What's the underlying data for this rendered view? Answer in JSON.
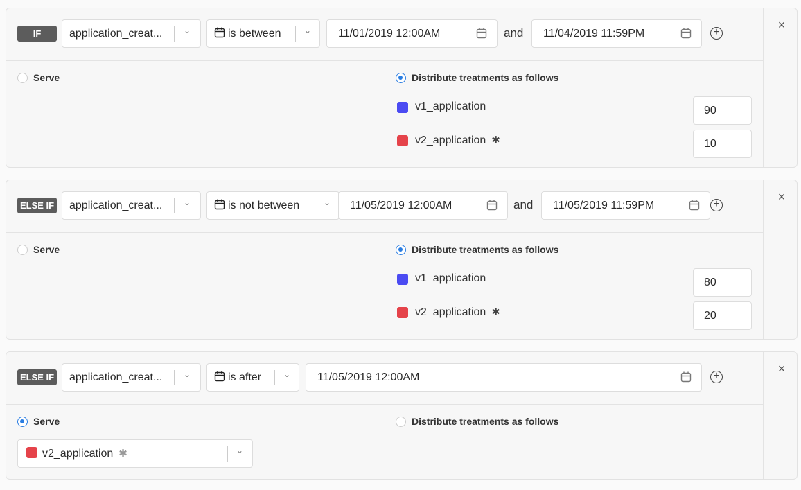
{
  "colors": {
    "v1_application": "#4b4bf2",
    "v2_application": "#e5434a",
    "accent": "#2a7de1",
    "badge": "#5c5c5c"
  },
  "icons": {
    "calendar": "calendar-icon",
    "chevron": "chevron-down-icon",
    "add": "plus-circle-icon",
    "close": "close-icon",
    "default": "asterisk-icon"
  },
  "labels": {
    "and": "and",
    "serve": "Serve",
    "distribute": "Distribute treatments as follows",
    "close": "×",
    "plus": "+",
    "star": "✱",
    "chevron": "⌄"
  },
  "rules": [
    {
      "badge": "IF",
      "attribute": "application_creat...",
      "operator": "is between",
      "dates": [
        "11/01/2019 12:00AM",
        "11/04/2019 11:59PM"
      ],
      "mode": "distribute",
      "treatments": [
        {
          "name": "v1_application",
          "color": "#4b4bf2",
          "percent": "90",
          "default": false
        },
        {
          "name": "v2_application",
          "color": "#e5434a",
          "percent": "10",
          "default": true
        }
      ]
    },
    {
      "badge": "ELSE IF",
      "attribute": "application_creat...",
      "operator": "is not between",
      "dates": [
        "11/05/2019 12:00AM",
        "11/05/2019 11:59PM"
      ],
      "mode": "distribute",
      "treatments": [
        {
          "name": "v1_application",
          "color": "#4b4bf2",
          "percent": "80",
          "default": false
        },
        {
          "name": "v2_application",
          "color": "#e5434a",
          "percent": "20",
          "default": true
        }
      ]
    },
    {
      "badge": "ELSE IF",
      "attribute": "application_creat...",
      "operator": "is after",
      "dates": [
        "11/05/2019 12:00AM"
      ],
      "mode": "serve",
      "serve": {
        "name": "v2_application",
        "color": "#e5434a",
        "default": true
      }
    }
  ]
}
